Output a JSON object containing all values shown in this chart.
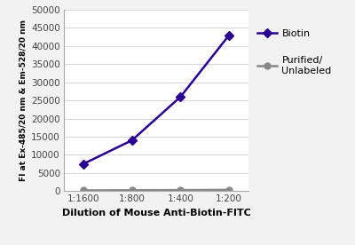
{
  "x_labels": [
    "1:1600",
    "1:800",
    "1:400",
    "1:200"
  ],
  "x_positions": [
    1,
    2,
    3,
    4
  ],
  "biotin_values": [
    7500,
    14000,
    26000,
    43000
  ],
  "purified_values": [
    200,
    250,
    280,
    350
  ],
  "biotin_color": "#2a0090",
  "purified_color": "#888888",
  "ylabel": "FI at Ex-485/20 nm & Em-528/20 nm",
  "xlabel": "Dilution of Mouse Anti-Biotin-FITC",
  "ylim": [
    0,
    50000
  ],
  "yticks": [
    0,
    5000,
    10000,
    15000,
    20000,
    25000,
    30000,
    35000,
    40000,
    45000,
    50000
  ],
  "legend_biotin": "Biotin",
  "legend_purified": "Purified/\nUnlabeled",
  "bg_color": "#f2f2f2",
  "plot_bg": "#ffffff",
  "grid_color": "#d8d8d8",
  "marker_size": 5,
  "line_width": 1.8
}
